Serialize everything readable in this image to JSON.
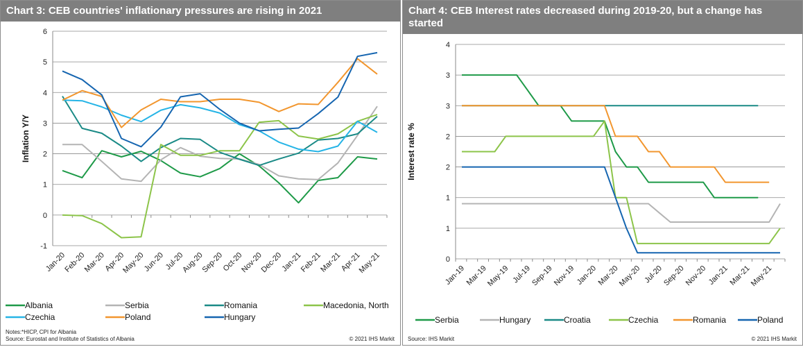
{
  "chart_data": [
    {
      "type": "line",
      "title": "Chart 3: CEB countries' inflationary pressures are rising in 2021",
      "xlabel": "",
      "ylabel": "Inflation Y/Y",
      "ylim": [
        -1,
        6
      ],
      "yticks": [
        "-1",
        "0",
        "1",
        "2",
        "3",
        "4",
        "5",
        "6"
      ],
      "grid": true,
      "legend": "bottom",
      "categories": [
        "Jan-20",
        "Feb-20",
        "Mar-20",
        "Apr-20",
        "May-20",
        "Jun-20",
        "Jul-20",
        "Aug-20",
        "Sep-20",
        "Oct-20",
        "Nov-20",
        "Dec-20",
        "Jan-21",
        "Feb-21",
        "Mar-21",
        "Apr-21",
        "May-21"
      ],
      "series": [
        {
          "name": "Albania",
          "color": "#1e9a48",
          "values": [
            1.45,
            1.22,
            2.1,
            1.9,
            2.08,
            1.78,
            1.37,
            1.25,
            1.52,
            2.0,
            1.6,
            1.05,
            0.4,
            1.13,
            1.22,
            1.9,
            1.83
          ]
        },
        {
          "name": "Serbia",
          "color": "#b4b4b4",
          "values": [
            2.3,
            2.3,
            1.75,
            1.18,
            1.1,
            1.8,
            2.2,
            1.92,
            1.85,
            1.83,
            1.65,
            1.28,
            1.18,
            1.16,
            1.7,
            2.6,
            3.55
          ]
        },
        {
          "name": "Romania",
          "color": "#1a8a86",
          "values": [
            3.88,
            2.83,
            2.67,
            2.25,
            1.75,
            2.2,
            2.5,
            2.47,
            2.05,
            1.82,
            1.62,
            1.83,
            2.02,
            2.45,
            2.5,
            2.65,
            3.22
          ]
        },
        {
          "name": "Macedonia, North",
          "color": "#8cc449",
          "values": [
            0.0,
            -0.02,
            -0.28,
            -0.74,
            -0.71,
            2.3,
            1.95,
            1.95,
            2.1,
            2.1,
            3.03,
            3.08,
            2.58,
            2.48,
            2.65,
            3.06,
            3.28
          ]
        },
        {
          "name": "Czechia",
          "color": "#25b4e6",
          "values": [
            3.75,
            3.73,
            3.53,
            3.26,
            3.05,
            3.42,
            3.6,
            3.5,
            3.33,
            2.95,
            2.75,
            2.38,
            2.15,
            2.07,
            2.25,
            3.06,
            2.7
          ]
        },
        {
          "name": "Poland",
          "color": "#f2962e",
          "values": [
            3.75,
            4.06,
            3.87,
            2.86,
            3.43,
            3.78,
            3.7,
            3.7,
            3.78,
            3.78,
            3.68,
            3.38,
            3.63,
            3.61,
            4.33,
            5.1,
            4.6
          ]
        },
        {
          "name": "Hungary",
          "color": "#1565b0",
          "values": [
            4.7,
            4.42,
            3.92,
            2.5,
            2.23,
            2.87,
            3.86,
            3.96,
            3.45,
            3.0,
            2.75,
            2.8,
            2.84,
            3.31,
            3.85,
            5.18,
            5.3
          ]
        }
      ],
      "notes": "Notes:*HICP, CPI for Albania",
      "source": "Source: Eurostat and Institute of Statistics of Albania",
      "copyright": "© 2021 IHS Markit"
    },
    {
      "type": "line",
      "title": "Chart 4: CEB Interest rates decreased during 2019-20, but a change has started",
      "xlabel": "",
      "ylabel": "Interest rate %",
      "ylim": [
        0,
        3.5
      ],
      "yticks": [
        "0",
        "1",
        "1",
        "2",
        "2",
        "3",
        "3",
        "4"
      ],
      "grid": true,
      "legend": "bottom",
      "categories": [
        "Jan-19",
        "Feb-19",
        "Mar-19",
        "Apr-19",
        "May-19",
        "Jun-19",
        "Jul-19",
        "Aug-19",
        "Sep-19",
        "Oct-19",
        "Nov-19",
        "Dec-19",
        "Jan-20",
        "Feb-20",
        "Mar-20",
        "Apr-20",
        "May-20",
        "Jun-20",
        "Jul-20",
        "Aug-20",
        "Sep-20",
        "Oct-20",
        "Nov-20",
        "Dec-20",
        "Jan-21",
        "Feb-21",
        "Mar-21",
        "Apr-21",
        "May-21",
        "Jun-21"
      ],
      "xtick_labels": [
        "Jan-19",
        "Mar-19",
        "May-19",
        "Jul-19",
        "Sep-19",
        "Nov-19",
        "Jan-20",
        "Mar-20",
        "May-20",
        "Jul-20",
        "Sep-20",
        "Nov-20",
        "Jan-21",
        "Mar-21",
        "May-21"
      ],
      "series": [
        {
          "name": "Serbia",
          "color": "#1e9a48",
          "values": [
            3,
            3,
            3,
            3,
            3,
            3,
            2.75,
            2.5,
            2.5,
            2.5,
            2.25,
            2.25,
            2.25,
            2.25,
            1.75,
            1.5,
            1.5,
            1.25,
            1.25,
            1.25,
            1.25,
            1.25,
            1.25,
            1,
            1,
            1,
            1,
            1,
            null,
            null
          ]
        },
        {
          "name": "Hungary",
          "color": "#b4b4b4",
          "values": [
            0.9,
            0.9,
            0.9,
            0.9,
            0.9,
            0.9,
            0.9,
            0.9,
            0.9,
            0.9,
            0.9,
            0.9,
            0.9,
            0.9,
            0.9,
            0.9,
            0.9,
            0.9,
            0.75,
            0.6,
            0.6,
            0.6,
            0.6,
            0.6,
            0.6,
            0.6,
            0.6,
            0.6,
            0.6,
            0.9
          ]
        },
        {
          "name": "Croatia",
          "color": "#1a8a86",
          "values": [
            2.5,
            2.5,
            2.5,
            2.5,
            2.5,
            2.5,
            2.5,
            2.5,
            2.5,
            2.5,
            2.5,
            2.5,
            2.5,
            2.5,
            2.5,
            2.5,
            2.5,
            2.5,
            2.5,
            2.5,
            2.5,
            2.5,
            2.5,
            2.5,
            2.5,
            2.5,
            2.5,
            2.5,
            null,
            null
          ]
        },
        {
          "name": "Czechia",
          "color": "#8cc449",
          "values": [
            1.75,
            1.75,
            1.75,
            1.75,
            2,
            2,
            2,
            2,
            2,
            2,
            2,
            2,
            2,
            2.25,
            1,
            1,
            0.25,
            0.25,
            0.25,
            0.25,
            0.25,
            0.25,
            0.25,
            0.25,
            0.25,
            0.25,
            0.25,
            0.25,
            0.25,
            0.5
          ]
        },
        {
          "name": "Romania",
          "color": "#f2962e",
          "values": [
            2.5,
            2.5,
            2.5,
            2.5,
            2.5,
            2.5,
            2.5,
            2.5,
            2.5,
            2.5,
            2.5,
            2.5,
            2.5,
            2.5,
            2,
            2,
            2,
            1.75,
            1.75,
            1.5,
            1.5,
            1.5,
            1.5,
            1.5,
            1.25,
            1.25,
            1.25,
            1.25,
            1.25,
            null
          ]
        },
        {
          "name": "Poland",
          "color": "#1565b0",
          "values": [
            1.5,
            1.5,
            1.5,
            1.5,
            1.5,
            1.5,
            1.5,
            1.5,
            1.5,
            1.5,
            1.5,
            1.5,
            1.5,
            1.5,
            1,
            0.5,
            0.1,
            0.1,
            0.1,
            0.1,
            0.1,
            0.1,
            0.1,
            0.1,
            0.1,
            0.1,
            0.1,
            0.1,
            0.1,
            0.1
          ]
        }
      ],
      "source": "Source: IHS Markit",
      "copyright": "© 2021 IHS Markit"
    }
  ]
}
